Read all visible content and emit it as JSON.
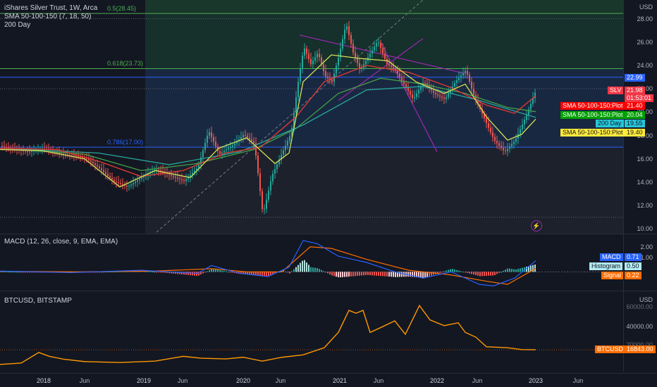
{
  "main": {
    "legend": [
      "iShares Silver Trust, 1W, Arca",
      "SMA 50-100-150 (7, 18, 50)",
      "200 Day"
    ],
    "currency": "USD",
    "ticks": [
      "28.00",
      "26.00",
      "24.00",
      "22.00",
      "20.00",
      "18.00",
      "16.00",
      "14.00",
      "12.00",
      "10.00"
    ],
    "fib": [
      {
        "label": "0.5(28.45)",
        "value": 28.45,
        "color": "#4caf50"
      },
      {
        "label": "0.618(23.73)",
        "value": 23.73,
        "color": "#4caf50"
      },
      {
        "label": "0.786(17.00)",
        "value": 17.0,
        "color": "#2962ff"
      }
    ],
    "tags": [
      {
        "text": "22.99",
        "bg": "#2962ff",
        "fg": "#ffffff"
      },
      {
        "text": "SLV",
        "bg": "#f23645",
        "fg": "#ffffff"
      },
      {
        "text": "21.98",
        "bg": "#f23645",
        "fg": "#ffffff"
      },
      {
        "text": "01:53:01",
        "bg": "#f23645",
        "fg": "#ffffff"
      },
      {
        "text": "SMA 50-100-150:Plot",
        "bg": "#ff0000",
        "fg": "#ffffff"
      },
      {
        "text": "21.40",
        "bg": "#ff0000",
        "fg": "#ffffff"
      },
      {
        "text": "SMA 50-100-150:Plot",
        "bg": "#00a000",
        "fg": "#ffffff"
      },
      {
        "text": "20.04",
        "bg": "#00a000",
        "fg": "#ffffff"
      },
      {
        "text": "200 Day",
        "bg": "#26c6da",
        "fg": "#131722"
      },
      {
        "text": "19.55",
        "bg": "#26c6da",
        "fg": "#131722"
      },
      {
        "text": "SMA 50-100-150:Plot",
        "bg": "#ffeb3b",
        "fg": "#131722"
      },
      {
        "text": "19.40",
        "bg": "#ffeb3b",
        "fg": "#131722"
      }
    ],
    "price_path": [
      [
        0,
        17.1
      ],
      [
        20,
        16.8
      ],
      [
        40,
        16.6
      ],
      [
        60,
        16.9
      ],
      [
        80,
        16.5
      ],
      [
        100,
        16.3
      ],
      [
        120,
        16.1
      ],
      [
        140,
        15.2
      ],
      [
        160,
        14.1
      ],
      [
        180,
        13.6
      ],
      [
        200,
        14.4
      ],
      [
        220,
        15.1
      ],
      [
        240,
        14.6
      ],
      [
        260,
        14.1
      ],
      [
        280,
        15.3
      ],
      [
        295,
        18.4
      ],
      [
        310,
        16.4
      ],
      [
        330,
        17.2
      ],
      [
        345,
        18.1
      ],
      [
        360,
        17.3
      ],
      [
        372,
        11.2
      ],
      [
        385,
        14.6
      ],
      [
        400,
        16.6
      ],
      [
        412,
        18.2
      ],
      [
        422,
        22.6
      ],
      [
        430,
        25.6
      ],
      [
        440,
        24.1
      ],
      [
        450,
        25.1
      ],
      [
        460,
        23.1
      ],
      [
        470,
        22.6
      ],
      [
        480,
        24.9
      ],
      [
        490,
        27.6
      ],
      [
        500,
        25.1
      ],
      [
        510,
        23.6
      ],
      [
        520,
        24.6
      ],
      [
        535,
        26.1
      ],
      [
        548,
        24.1
      ],
      [
        560,
        23.6
      ],
      [
        570,
        22.6
      ],
      [
        585,
        21.1
      ],
      [
        600,
        22.6
      ],
      [
        615,
        21.6
      ],
      [
        630,
        21.1
      ],
      [
        645,
        22.6
      ],
      [
        660,
        23.6
      ],
      [
        670,
        21.6
      ],
      [
        685,
        19.6
      ],
      [
        700,
        17.6
      ],
      [
        715,
        16.6
      ],
      [
        730,
        17.6
      ],
      [
        745,
        19.6
      ],
      [
        760,
        21.98
      ]
    ],
    "ma_yellow": [
      [
        0,
        16.8
      ],
      [
        60,
        16.7
      ],
      [
        120,
        16.0
      ],
      [
        170,
        13.6
      ],
      [
        220,
        15.0
      ],
      [
        270,
        14.4
      ],
      [
        310,
        16.9
      ],
      [
        350,
        17.8
      ],
      [
        390,
        15.6
      ],
      [
        410,
        16.5
      ],
      [
        430,
        22.6
      ],
      [
        470,
        24.9
      ],
      [
        510,
        24.6
      ],
      [
        550,
        24.4
      ],
      [
        590,
        22.6
      ],
      [
        630,
        21.6
      ],
      [
        660,
        22.4
      ],
      [
        690,
        19.6
      ],
      [
        720,
        17.6
      ],
      [
        740,
        18.1
      ],
      [
        760,
        19.4
      ]
    ],
    "ma_red": [
      [
        0,
        16.9
      ],
      [
        80,
        16.8
      ],
      [
        140,
        15.8
      ],
      [
        200,
        14.5
      ],
      [
        260,
        15.0
      ],
      [
        320,
        16.5
      ],
      [
        370,
        17.0
      ],
      [
        420,
        19.6
      ],
      [
        460,
        22.6
      ],
      [
        520,
        24.0
      ],
      [
        580,
        23.4
      ],
      [
        640,
        22.1
      ],
      [
        690,
        20.6
      ],
      [
        730,
        19.9
      ],
      [
        760,
        21.4
      ]
    ],
    "ma_green": [
      [
        0,
        16.9
      ],
      [
        120,
        16.4
      ],
      [
        200,
        15.0
      ],
      [
        280,
        15.6
      ],
      [
        360,
        16.8
      ],
      [
        420,
        18.6
      ],
      [
        480,
        21.6
      ],
      [
        540,
        22.9
      ],
      [
        600,
        22.4
      ],
      [
        660,
        21.6
      ],
      [
        720,
        20.4
      ],
      [
        760,
        20.04
      ]
    ],
    "ma_cyan": [
      [
        0,
        16.9
      ],
      [
        140,
        16.5
      ],
      [
        240,
        15.5
      ],
      [
        340,
        16.6
      ],
      [
        430,
        18.9
      ],
      [
        520,
        21.9
      ],
      [
        600,
        22.2
      ],
      [
        680,
        21.0
      ],
      [
        760,
        19.55
      ]
    ],
    "macd": {
      "ticks": [
        "2.00",
        "1.00"
      ],
      "legend": "MACD (12, 26, close, 9, EMA, EMA)",
      "tags": [
        {
          "text": "MACD",
          "bg": "#2962ff",
          "fg": "#ffffff"
        },
        {
          "text": "0.71",
          "bg": "#2962ff",
          "fg": "#ffffff"
        },
        {
          "text": "Histogram",
          "bg": "#b2ebf2",
          "fg": "#131722"
        },
        {
          "text": "0.50",
          "bg": "#b2ebf2",
          "fg": "#131722"
        },
        {
          "text": "Signal",
          "bg": "#ff6d00",
          "fg": "#ffffff"
        },
        {
          "text": "0.22",
          "bg": "#ff6d00",
          "fg": "#ffffff"
        }
      ],
      "macd_line": [
        [
          0,
          0.05
        ],
        [
          100,
          -0.05
        ],
        [
          200,
          0.1
        ],
        [
          280,
          -0.1
        ],
        [
          300,
          0.4
        ],
        [
          340,
          -0.1
        ],
        [
          380,
          -0.3
        ],
        [
          410,
          0.3
        ],
        [
          430,
          2.0
        ],
        [
          450,
          1.8
        ],
        [
          480,
          1.0
        ],
        [
          520,
          0.6
        ],
        [
          560,
          0.0
        ],
        [
          600,
          -0.4
        ],
        [
          640,
          0.0
        ],
        [
          680,
          -0.8
        ],
        [
          700,
          -0.9
        ],
        [
          730,
          -0.4
        ],
        [
          760,
          0.71
        ]
      ],
      "signal_line": [
        [
          0,
          0.03
        ],
        [
          120,
          0.0
        ],
        [
          220,
          0.05
        ],
        [
          300,
          0.2
        ],
        [
          350,
          0.0
        ],
        [
          400,
          0.0
        ],
        [
          440,
          1.6
        ],
        [
          470,
          1.5
        ],
        [
          520,
          0.8
        ],
        [
          580,
          0.1
        ],
        [
          640,
          -0.2
        ],
        [
          690,
          -0.6
        ],
        [
          720,
          -0.8
        ],
        [
          760,
          0.22
        ]
      ]
    },
    "btc": {
      "legend": "BTCUSD, BITSTAMP",
      "currency": "USD",
      "ticks": [
        "60000.00",
        "40000.00",
        "20000.00"
      ],
      "tags": [
        {
          "text": "BTCUSD",
          "bg": "#ff6d00",
          "fg": "#ffffff"
        },
        {
          "text": "16843.00",
          "bg": "#ff6d00",
          "fg": "#ffffff"
        }
      ],
      "path": [
        [
          0,
          1500
        ],
        [
          30,
          3000
        ],
        [
          55,
          14000
        ],
        [
          70,
          10000
        ],
        [
          90,
          7000
        ],
        [
          120,
          4500
        ],
        [
          170,
          3500
        ],
        [
          220,
          5000
        ],
        [
          260,
          10000
        ],
        [
          285,
          8000
        ],
        [
          320,
          7300
        ],
        [
          345,
          9000
        ],
        [
          372,
          5000
        ],
        [
          400,
          9000
        ],
        [
          430,
          11500
        ],
        [
          460,
          19000
        ],
        [
          480,
          35000
        ],
        [
          495,
          58000
        ],
        [
          505,
          55000
        ],
        [
          515,
          58000
        ],
        [
          525,
          35000
        ],
        [
          540,
          40000
        ],
        [
          560,
          47000
        ],
        [
          575,
          33000
        ],
        [
          595,
          63000
        ],
        [
          610,
          48000
        ],
        [
          630,
          42000
        ],
        [
          650,
          45000
        ],
        [
          660,
          35000
        ],
        [
          675,
          30000
        ],
        [
          690,
          20000
        ],
        [
          720,
          19000
        ],
        [
          740,
          17000
        ],
        [
          760,
          16843
        ]
      ]
    }
  },
  "time_axis": [
    {
      "label": "2018",
      "year": true
    },
    {
      "label": "Jun",
      "year": false
    },
    {
      "label": "2019",
      "year": true
    },
    {
      "label": "Jun",
      "year": false
    },
    {
      "label": "2020",
      "year": true
    },
    {
      "label": "Jun",
      "year": false
    },
    {
      "label": "2021",
      "year": true
    },
    {
      "label": "Jun",
      "year": false
    },
    {
      "label": "2022",
      "year": true
    },
    {
      "label": "Jun",
      "year": false
    },
    {
      "label": "2023",
      "year": true
    },
    {
      "label": "Jun",
      "year": false
    }
  ],
  "colors": {
    "up": "#26a69a",
    "down": "#ef5350",
    "bg": "#131722",
    "grid": "#2a2e39"
  }
}
